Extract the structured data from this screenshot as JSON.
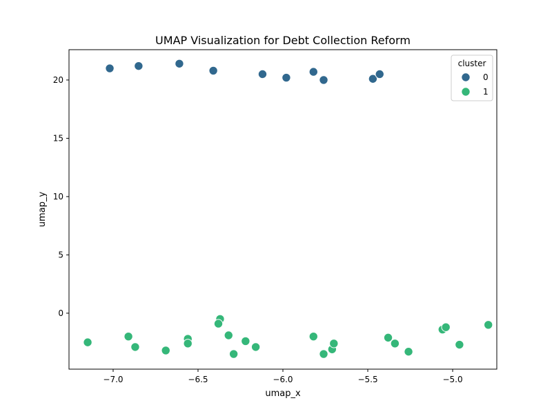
{
  "chart_data": {
    "type": "scatter",
    "title": "UMAP Visualization for Debt Collection Reform",
    "xlabel": "umap_x",
    "ylabel": "umap_y",
    "xlim": [
      -7.26,
      -4.74
    ],
    "ylim": [
      -4.8,
      22.6
    ],
    "xticks": [
      -7.0,
      -6.5,
      -6.0,
      -5.5,
      -5.0
    ],
    "xtick_labels": [
      "−7.0",
      "−6.5",
      "−6.0",
      "−5.5",
      "−5.0"
    ],
    "yticks": [
      0,
      5,
      10,
      15,
      20
    ],
    "ytick_labels": [
      "0",
      "5",
      "10",
      "15",
      "20"
    ],
    "grid": false,
    "legend": {
      "title": "cluster",
      "placement": "top-right"
    },
    "series": [
      {
        "name": "0",
        "color": "#31688e",
        "points": [
          [
            -7.02,
            21.0
          ],
          [
            -6.85,
            21.2
          ],
          [
            -6.61,
            21.4
          ],
          [
            -6.41,
            20.8
          ],
          [
            -6.12,
            20.5
          ],
          [
            -5.98,
            20.2
          ],
          [
            -5.82,
            20.7
          ],
          [
            -5.76,
            20.0
          ],
          [
            -5.47,
            20.1
          ],
          [
            -5.43,
            20.5
          ]
        ]
      },
      {
        "name": "1",
        "color": "#35b779",
        "points": [
          [
            -7.15,
            -2.5
          ],
          [
            -6.91,
            -2.0
          ],
          [
            -6.87,
            -2.9
          ],
          [
            -6.69,
            -3.2
          ],
          [
            -6.56,
            -2.2
          ],
          [
            -6.56,
            -2.6
          ],
          [
            -6.37,
            -0.5
          ],
          [
            -6.38,
            -0.9
          ],
          [
            -6.32,
            -1.9
          ],
          [
            -6.29,
            -3.5
          ],
          [
            -6.22,
            -2.4
          ],
          [
            -6.16,
            -2.9
          ],
          [
            -5.82,
            -2.0
          ],
          [
            -5.76,
            -3.5
          ],
          [
            -5.71,
            -3.1
          ],
          [
            -5.7,
            -2.6
          ],
          [
            -5.38,
            -2.1
          ],
          [
            -5.34,
            -2.6
          ],
          [
            -5.26,
            -3.3
          ],
          [
            -5.06,
            -1.4
          ],
          [
            -5.04,
            -1.2
          ],
          [
            -4.96,
            -2.7
          ],
          [
            -4.79,
            -1.0
          ]
        ]
      }
    ]
  }
}
